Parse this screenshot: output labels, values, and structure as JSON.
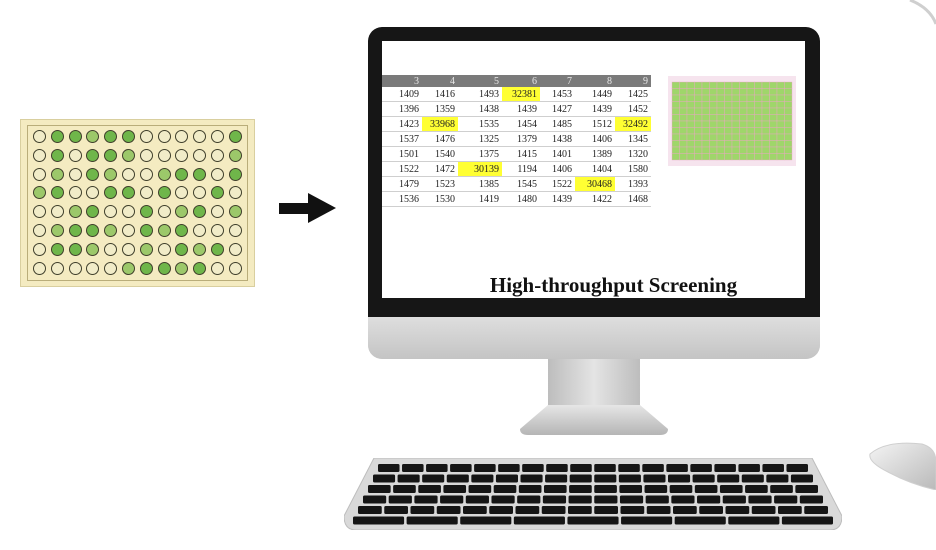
{
  "title": "High-throughput Screening",
  "plate": {
    "rows": 8,
    "cols": 12,
    "pattern": [
      "ogggggooooog",
      "ogogggooooog",
      "ogoggoogggog",
      "ggooggogoogo",
      "ooggoogoggog",
      "oggggogggooo",
      "ogggoogogggo",
      "ooooogggggoo"
    ],
    "colors": {
      "green": "#6fb64a",
      "green_light": "#9cc86a",
      "empty": "#f1ecc8",
      "plate": "#f4ebc1"
    }
  },
  "table": {
    "headers": [
      "3",
      "4",
      "5",
      "6",
      "7",
      "8",
      "9"
    ],
    "rows": [
      [
        "1409",
        "1416",
        "1493",
        "32381",
        "1453",
        "1449",
        "1425"
      ],
      [
        "1396",
        "1359",
        "1438",
        "1439",
        "1427",
        "1439",
        "1452"
      ],
      [
        "1423",
        "33968",
        "1535",
        "1454",
        "1485",
        "1512",
        "32492"
      ],
      [
        "1537",
        "1476",
        "1325",
        "1379",
        "1438",
        "1406",
        "1345"
      ],
      [
        "1501",
        "1540",
        "1375",
        "1415",
        "1401",
        "1389",
        "1320"
      ],
      [
        "1522",
        "1472",
        "30139",
        "1194",
        "1406",
        "1404",
        "1580"
      ],
      [
        "1479",
        "1523",
        "1385",
        "1545",
        "1522",
        "30468",
        "1393"
      ],
      [
        "1536",
        "1530",
        "1419",
        "1480",
        "1439",
        "1422",
        "1468"
      ]
    ],
    "highlight_color": "#ffff33"
  },
  "heatmap": {
    "rows": 12,
    "cols": 16,
    "colors": {
      "cell": "#9fd66a",
      "grid": "#e9a7c2",
      "bg": "#f6e4ee"
    }
  }
}
